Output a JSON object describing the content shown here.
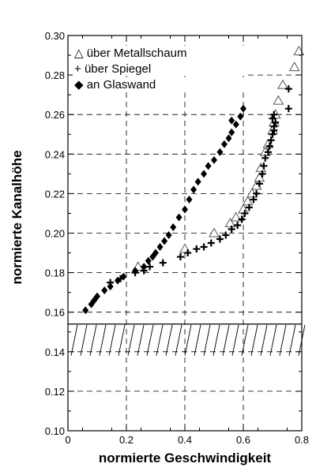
{
  "chart_data": {
    "type": "scatter",
    "xlabel": "normierte Geschwindigkeit",
    "ylabel": "normierte Kanalhöhe",
    "xlim": [
      0,
      0.8
    ],
    "ylim": [
      0.1,
      0.3
    ],
    "x_ticks": [
      "0",
      "0.2",
      "0.4",
      "0.6",
      "0.8"
    ],
    "y_ticks": [
      "0.10",
      "0.12",
      "0.14",
      "0.16",
      "0.18",
      "0.20",
      "0.22",
      "0.24",
      "0.26",
      "0.28",
      "0.30"
    ],
    "grid": "dashed",
    "wall_y": 0.154,
    "legend": {
      "position": "top-left",
      "entries": [
        {
          "marker": "△",
          "label": "über Metallschaum"
        },
        {
          "marker": "+",
          "label": "über Spiegel"
        },
        {
          "marker": "◆",
          "label": "an Glaswand"
        }
      ]
    },
    "series": [
      {
        "name": "über Metallschaum",
        "marker": "triangle",
        "points": [
          [
            0.24,
            0.183
          ],
          [
            0.4,
            0.192
          ],
          [
            0.5,
            0.2
          ],
          [
            0.555,
            0.205
          ],
          [
            0.575,
            0.208
          ],
          [
            0.6,
            0.212
          ],
          [
            0.615,
            0.216
          ],
          [
            0.63,
            0.22
          ],
          [
            0.645,
            0.224
          ],
          [
            0.655,
            0.228
          ],
          [
            0.66,
            0.233
          ],
          [
            0.675,
            0.241
          ],
          [
            0.685,
            0.245
          ],
          [
            0.7,
            0.252
          ],
          [
            0.705,
            0.256
          ],
          [
            0.71,
            0.26
          ],
          [
            0.72,
            0.267
          ],
          [
            0.735,
            0.275
          ],
          [
            0.775,
            0.284
          ],
          [
            0.79,
            0.292
          ]
        ]
      },
      {
        "name": "über Spiegel",
        "marker": "plus",
        "points": [
          [
            0.145,
            0.175
          ],
          [
            0.18,
            0.177
          ],
          [
            0.23,
            0.18
          ],
          [
            0.26,
            0.181
          ],
          [
            0.28,
            0.183
          ],
          [
            0.325,
            0.185
          ],
          [
            0.385,
            0.188
          ],
          [
            0.41,
            0.19
          ],
          [
            0.44,
            0.192
          ],
          [
            0.465,
            0.193
          ],
          [
            0.49,
            0.195
          ],
          [
            0.52,
            0.197
          ],
          [
            0.54,
            0.199
          ],
          [
            0.56,
            0.202
          ],
          [
            0.58,
            0.204
          ],
          [
            0.595,
            0.207
          ],
          [
            0.605,
            0.21
          ],
          [
            0.62,
            0.213
          ],
          [
            0.635,
            0.217
          ],
          [
            0.645,
            0.22
          ],
          [
            0.655,
            0.225
          ],
          [
            0.665,
            0.23
          ],
          [
            0.67,
            0.234
          ],
          [
            0.675,
            0.238
          ],
          [
            0.685,
            0.241
          ],
          [
            0.69,
            0.244
          ],
          [
            0.695,
            0.247
          ],
          [
            0.7,
            0.25
          ],
          [
            0.705,
            0.252
          ],
          [
            0.705,
            0.254
          ],
          [
            0.71,
            0.256
          ],
          [
            0.7,
            0.258
          ],
          [
            0.705,
            0.26
          ],
          [
            0.755,
            0.263
          ],
          [
            0.755,
            0.273
          ]
        ]
      },
      {
        "name": "an Glaswand",
        "marker": "diamond",
        "points": [
          [
            0.06,
            0.161
          ],
          [
            0.08,
            0.164
          ],
          [
            0.09,
            0.166
          ],
          [
            0.1,
            0.168
          ],
          [
            0.125,
            0.171
          ],
          [
            0.145,
            0.173
          ],
          [
            0.17,
            0.176
          ],
          [
            0.19,
            0.178
          ],
          [
            0.23,
            0.181
          ],
          [
            0.26,
            0.183
          ],
          [
            0.275,
            0.186
          ],
          [
            0.29,
            0.188
          ],
          [
            0.3,
            0.19
          ],
          [
            0.315,
            0.193
          ],
          [
            0.33,
            0.196
          ],
          [
            0.345,
            0.199
          ],
          [
            0.36,
            0.203
          ],
          [
            0.38,
            0.208
          ],
          [
            0.4,
            0.212
          ],
          [
            0.415,
            0.217
          ],
          [
            0.43,
            0.222
          ],
          [
            0.445,
            0.226
          ],
          [
            0.465,
            0.23
          ],
          [
            0.48,
            0.234
          ],
          [
            0.5,
            0.237
          ],
          [
            0.52,
            0.241
          ],
          [
            0.535,
            0.245
          ],
          [
            0.55,
            0.248
          ],
          [
            0.56,
            0.251
          ],
          [
            0.575,
            0.255
          ],
          [
            0.59,
            0.259
          ],
          [
            0.6,
            0.263
          ],
          [
            0.56,
            0.257
          ]
        ]
      }
    ]
  }
}
